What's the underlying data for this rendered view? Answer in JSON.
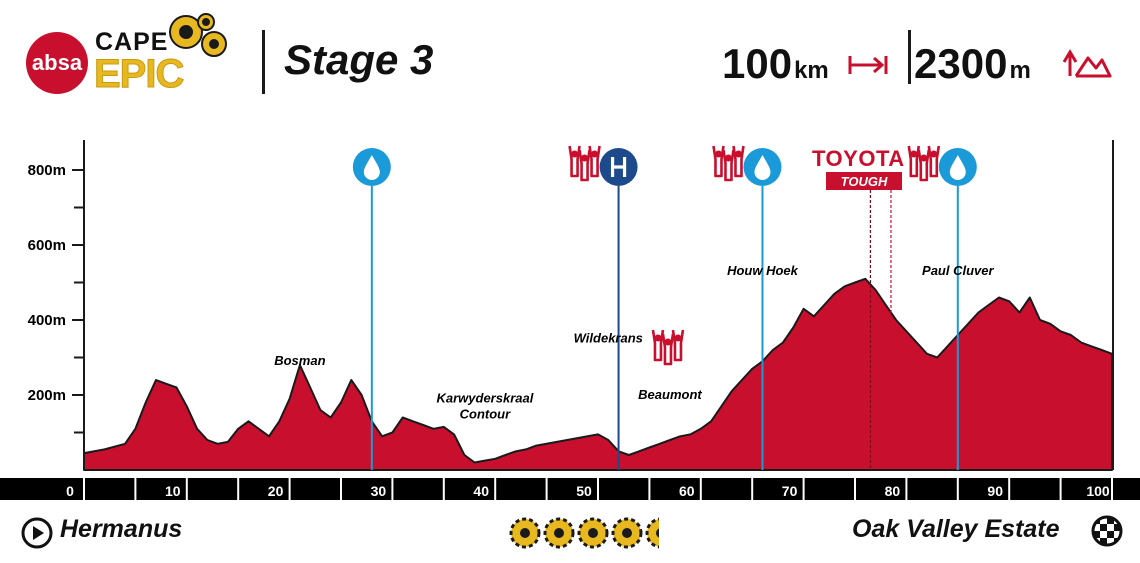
{
  "header": {
    "brand_badge": "absa",
    "brand_top": "CAPE",
    "brand_bottom": "EPIC",
    "stage_title": "Stage 3",
    "distance_value": "100",
    "distance_unit": "km",
    "climb_value": "2300",
    "climb_unit": "m"
  },
  "footer": {
    "start": "Hermanus",
    "finish": "Oak Valley Estate",
    "difficulty_rating": 4.5,
    "difficulty_max": 5
  },
  "toyota": {
    "brand": "TOYOTA",
    "label": "TOUGH",
    "start_km": 76.5,
    "end_km": 78.5
  },
  "waypoints": [
    {
      "km": 28,
      "type": "water"
    },
    {
      "km": 52,
      "type": "h",
      "spectators": true
    },
    {
      "km": 66,
      "type": "water",
      "spectators": true
    },
    {
      "km": 85,
      "type": "water",
      "spectators": true
    }
  ],
  "extra_spectators": [
    {
      "km": 57
    }
  ],
  "chart_data": {
    "type": "area",
    "title": "",
    "xlabel": "",
    "ylabel": "",
    "xlim": [
      0,
      100
    ],
    "ylim": [
      0,
      870
    ],
    "y_ticks": [
      200,
      400,
      600,
      800
    ],
    "y_tick_labels": [
      "200m",
      "400m",
      "600m",
      "800m"
    ],
    "x_ticks": [
      0,
      10,
      20,
      30,
      40,
      50,
      60,
      70,
      80,
      90,
      100
    ],
    "x_tick_labels": [
      "0",
      "10",
      "20",
      "30",
      "40",
      "50",
      "60",
      "70",
      "80",
      "90",
      "100"
    ],
    "grid": false,
    "series": [
      {
        "x": [
          0,
          2,
          4,
          5,
          6,
          7,
          8,
          9,
          10,
          11,
          12,
          13,
          14,
          15,
          16,
          17,
          18,
          19,
          20,
          21,
          22,
          23,
          24,
          25,
          26,
          27,
          28,
          29,
          30,
          31,
          32,
          33,
          34,
          35,
          36,
          37,
          38,
          39,
          40,
          41,
          42,
          43,
          44,
          46,
          48,
          50,
          51,
          52,
          53,
          54,
          55,
          56,
          57,
          58,
          59,
          60,
          61,
          62,
          63,
          64,
          65,
          66,
          67,
          68,
          69,
          70,
          71,
          72,
          73,
          74,
          75,
          76,
          77,
          78,
          79,
          80,
          81,
          82,
          83,
          84,
          85,
          86,
          87,
          88,
          89,
          90,
          91,
          92,
          93,
          94,
          95,
          96,
          97,
          98,
          99,
          100
        ],
        "y": [
          45,
          55,
          70,
          110,
          180,
          240,
          230,
          220,
          170,
          110,
          80,
          70,
          75,
          110,
          130,
          110,
          90,
          130,
          190,
          280,
          220,
          160,
          140,
          180,
          240,
          200,
          130,
          90,
          100,
          140,
          130,
          120,
          110,
          115,
          95,
          40,
          20,
          25,
          30,
          40,
          50,
          55,
          65,
          75,
          85,
          95,
          80,
          50,
          40,
          50,
          60,
          70,
          80,
          90,
          95,
          110,
          130,
          170,
          210,
          240,
          270,
          290,
          320,
          340,
          380,
          430,
          410,
          440,
          470,
          490,
          500,
          510,
          480,
          440,
          400,
          370,
          340,
          310,
          300,
          330,
          360,
          390,
          420,
          440,
          460,
          450,
          420,
          460,
          400,
          390,
          370,
          360,
          340,
          330,
          320,
          310
        ]
      }
    ],
    "annotations": [
      {
        "label": "Bosman",
        "km": 21,
        "elev": 280
      },
      {
        "label": "Karwyderskraal Contour",
        "km": 39,
        "elev": 180
      },
      {
        "label": "Wildekrans",
        "km": 51,
        "elev": 340
      },
      {
        "label": "Beaumont",
        "km": 57,
        "elev": 190
      },
      {
        "label": "Houw Hoek",
        "km": 66,
        "elev": 520
      },
      {
        "label": "Paul Cluver",
        "km": 85,
        "elev": 520
      }
    ]
  }
}
